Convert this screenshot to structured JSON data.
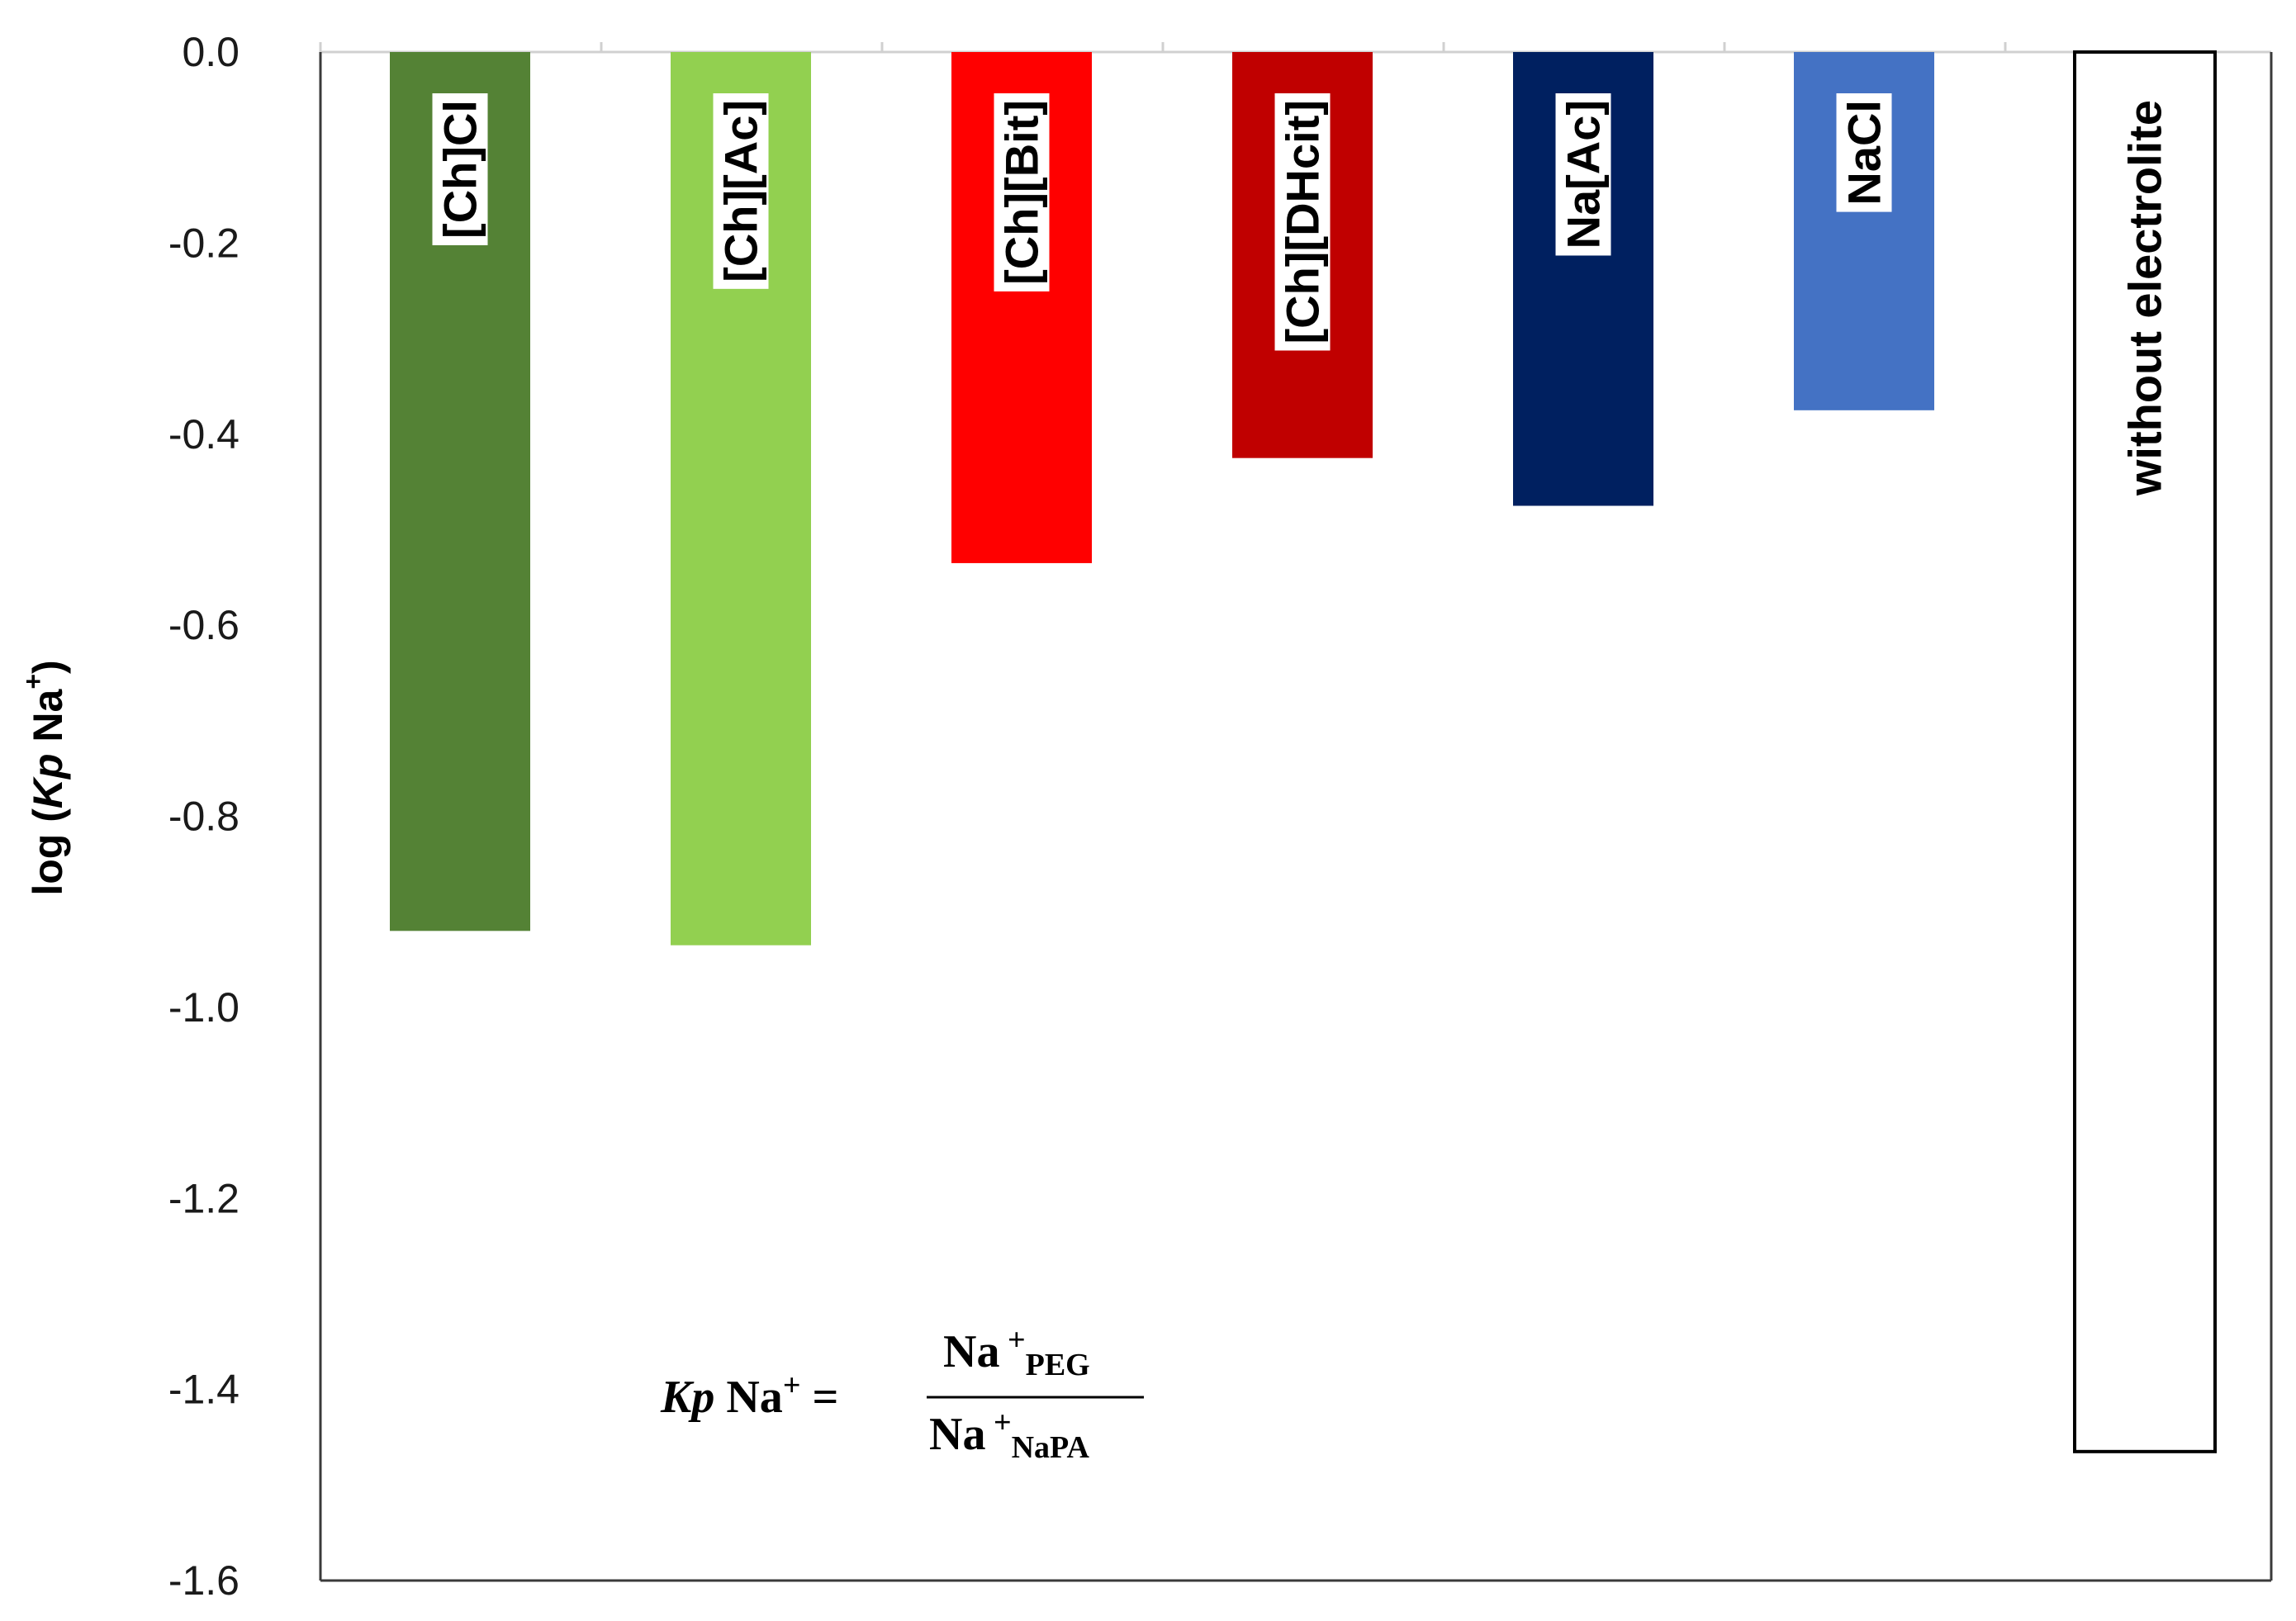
{
  "chart_data": {
    "type": "bar",
    "orientation": "vertical-downward",
    "categories": [
      "[Ch]Cl",
      "[Ch][Ac]",
      "[Ch][Bit]",
      "[Ch][DHcit]",
      "Na[Ac]",
      "NaCl",
      "without electrolite"
    ],
    "values": [
      -0.92,
      -0.935,
      -0.535,
      -0.425,
      -0.475,
      -0.375,
      -1.465
    ],
    "colors": [
      "#548235",
      "#92D050",
      "#FF0000",
      "#C00000",
      "#002060",
      "#4472C4",
      "#FFFFFF"
    ],
    "ylabel": {
      "prefix": "log (",
      "italic": "Kp",
      "ion": " Na",
      "superscript": "+",
      "suffix": ")"
    },
    "ylim": [
      -1.6,
      0.0
    ],
    "yticks": [
      "0.0",
      "-0.2",
      "-0.4",
      "-0.6",
      "-0.8",
      "-1.0",
      "-1.2",
      "-1.4",
      "-1.6"
    ],
    "grid": false,
    "legend": "none",
    "equation": {
      "lhs_italic": "Kp",
      "lhs_ion": " Na",
      "lhs_sup": "+",
      "equals": " =",
      "numerator": "Na",
      "numerator_sup": "+",
      "numerator_sub": "PEG",
      "denominator": "Na",
      "denominator_sup": "+",
      "denominator_sub": "NaPA"
    }
  }
}
